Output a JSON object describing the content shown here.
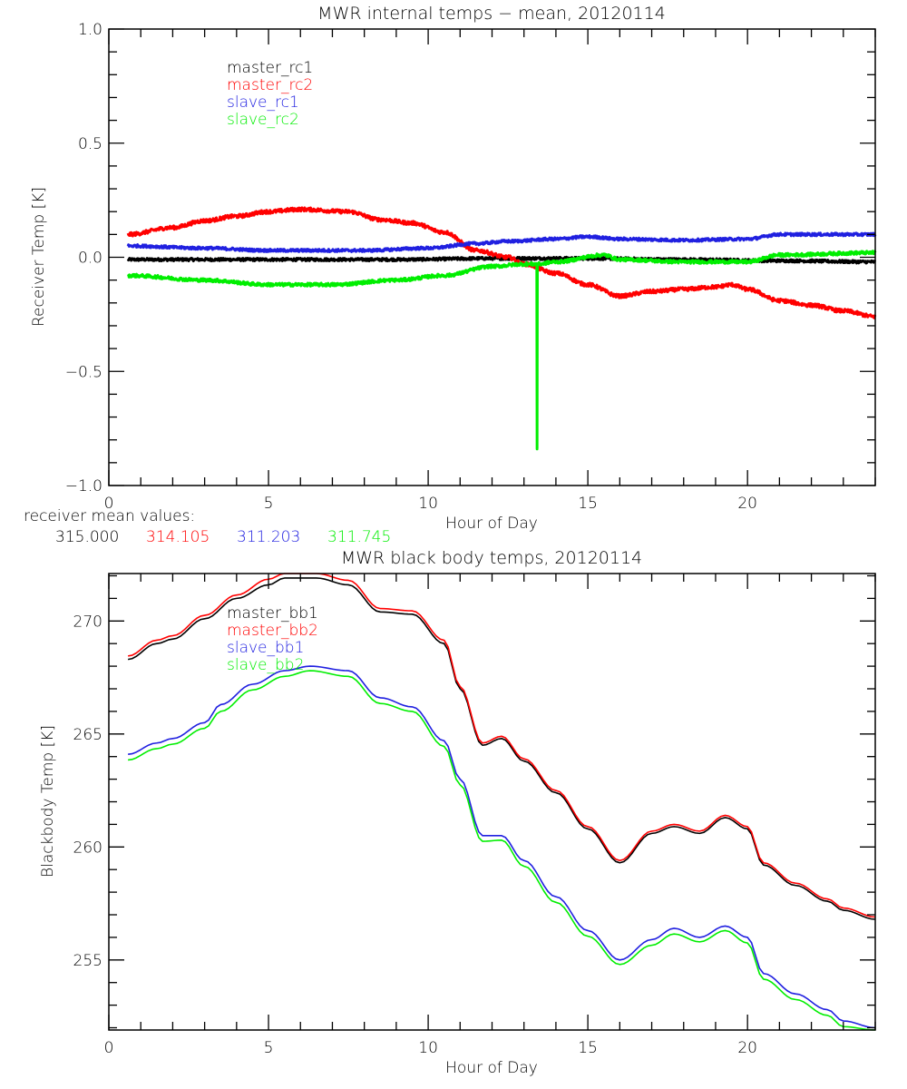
{
  "chart_data": [
    {
      "type": "line",
      "title": "MWR internal temps − mean, 20120114",
      "xlabel": "Hour of Day",
      "ylabel": "Receiver Temp [K]",
      "xlim": [
        0,
        24
      ],
      "ylim": [
        -1.0,
        1.0
      ],
      "xticks": [
        0,
        5,
        10,
        15,
        20
      ],
      "xtick_labels": [
        "0",
        "5",
        "10",
        "15",
        "20"
      ],
      "yticks": [
        -1.0,
        -0.5,
        0.0,
        0.5,
        1.0
      ],
      "ytick_labels": [
        "−1.0",
        "−0.5",
        "0.0",
        "0.5",
        "1.0"
      ],
      "grid": false,
      "legend_position": "top-left",
      "series": [
        {
          "name": "master_rc1",
          "color": "#000000",
          "x": [
            0.6,
            3,
            6,
            9,
            12,
            15,
            18,
            21,
            24
          ],
          "y": [
            -0.01,
            -0.01,
            -0.01,
            -0.01,
            -0.005,
            -0.005,
            -0.01,
            -0.015,
            -0.02
          ]
        },
        {
          "name": "master_rc2",
          "color": "#ff0000",
          "x": [
            0.6,
            2,
            3,
            4,
            5,
            6,
            7.5,
            8.5,
            9.5,
            10.5,
            11.5,
            12.5,
            13,
            14,
            15,
            16,
            17,
            18,
            19,
            19.5,
            20,
            21,
            22,
            23,
            24
          ],
          "y": [
            0.1,
            0.13,
            0.16,
            0.18,
            0.2,
            0.21,
            0.2,
            0.165,
            0.15,
            0.11,
            0.03,
            0.0,
            -0.03,
            -0.07,
            -0.12,
            -0.17,
            -0.15,
            -0.14,
            -0.13,
            -0.12,
            -0.14,
            -0.19,
            -0.21,
            -0.235,
            -0.26
          ]
        },
        {
          "name": "slave_rc1",
          "color": "#2020e0",
          "x": [
            0.6,
            3,
            5,
            8,
            10,
            11.5,
            12.5,
            14,
            15,
            16,
            18,
            20,
            21,
            24
          ],
          "y": [
            0.05,
            0.04,
            0.03,
            0.03,
            0.04,
            0.06,
            0.07,
            0.08,
            0.09,
            0.08,
            0.075,
            0.08,
            0.1,
            0.1
          ]
        },
        {
          "name": "slave_rc2",
          "color": "#00ee00",
          "x": [
            0.6,
            3,
            5,
            7,
            9,
            10.5,
            12,
            13,
            13.4,
            13.41,
            13.42,
            14,
            15.5,
            16,
            18,
            20,
            21,
            24
          ],
          "y": [
            -0.08,
            -0.1,
            -0.12,
            -0.12,
            -0.1,
            -0.08,
            -0.04,
            -0.03,
            -0.03,
            -0.84,
            -0.03,
            -0.02,
            0.01,
            -0.01,
            -0.02,
            -0.02,
            0.01,
            0.02
          ]
        }
      ],
      "annotation": {
        "label": "receiver mean values:",
        "values": [
          {
            "series": "master_rc1",
            "text": "315.000",
            "color": "#000000"
          },
          {
            "series": "master_rc2",
            "text": "314.105",
            "color": "#ff0000"
          },
          {
            "series": "slave_rc1",
            "text": "311.203",
            "color": "#2020e0"
          },
          {
            "series": "slave_rc2",
            "text": "311.745",
            "color": "#00ee00"
          }
        ]
      }
    },
    {
      "type": "line",
      "title": "MWR black body temps, 20120114",
      "xlabel": "Hour of Day",
      "ylabel": "Blackbody Temp [K]",
      "xlim": [
        0,
        24
      ],
      "ylim": [
        251.9,
        272.1
      ],
      "xticks": [
        0,
        5,
        10,
        15,
        20
      ],
      "xtick_labels": [
        "0",
        "5",
        "10",
        "15",
        "20"
      ],
      "yticks": [
        255,
        260,
        265,
        270
      ],
      "ytick_labels": [
        "255",
        "260",
        "265",
        "270"
      ],
      "grid": false,
      "legend_position": "top-left",
      "series": [
        {
          "name": "master_bb1",
          "color": "#000000",
          "x": [
            0.6,
            1.5,
            2,
            3,
            4,
            5,
            5.5,
            6.5,
            7.5,
            8.5,
            9.5,
            10.5,
            11,
            11.7,
            12.3,
            13,
            14,
            15,
            16,
            17,
            17.7,
            18.5,
            19.3,
            20,
            20.5,
            21.5,
            22.5,
            23,
            24
          ],
          "y": [
            268.3,
            269.0,
            269.2,
            270.1,
            271.0,
            271.6,
            271.9,
            271.9,
            271.6,
            270.4,
            270.3,
            269.0,
            267.0,
            264.5,
            264.8,
            263.8,
            262.4,
            260.8,
            259.3,
            260.6,
            260.9,
            260.6,
            261.3,
            260.8,
            259.2,
            258.3,
            257.6,
            257.2,
            256.8
          ]
        },
        {
          "name": "master_bb2",
          "color": "#ff0000",
          "x": [
            0.6,
            1.5,
            2,
            3,
            4,
            5,
            5.5,
            6.5,
            7.5,
            8.5,
            9.5,
            10.5,
            11,
            11.7,
            12.3,
            13,
            14,
            15,
            16,
            17,
            17.7,
            18.5,
            19.3,
            20,
            20.5,
            21.5,
            22.5,
            23,
            24
          ],
          "y": [
            268.45,
            269.15,
            269.35,
            270.25,
            271.15,
            271.85,
            272.1,
            272.1,
            271.8,
            270.55,
            270.45,
            269.15,
            267.1,
            264.6,
            264.9,
            263.9,
            262.5,
            260.9,
            259.4,
            260.7,
            261.0,
            260.7,
            261.4,
            260.9,
            259.3,
            258.4,
            257.7,
            257.3,
            256.9
          ]
        },
        {
          "name": "slave_bb1",
          "color": "#2020e0",
          "x": [
            0.6,
            1.5,
            2,
            3,
            3.5,
            4.5,
            5.5,
            6.3,
            7.5,
            8.5,
            9.5,
            10.5,
            11,
            11.7,
            12.3,
            13,
            14,
            15,
            16,
            17,
            17.7,
            18.5,
            19.3,
            20,
            20.5,
            21.5,
            22.5,
            23,
            24
          ],
          "y": [
            264.1,
            264.6,
            264.8,
            265.5,
            266.3,
            267.2,
            267.8,
            268.0,
            267.8,
            266.6,
            266.2,
            264.7,
            263.0,
            260.5,
            260.5,
            259.4,
            257.8,
            256.3,
            255.0,
            255.9,
            256.4,
            256.0,
            256.5,
            256.0,
            254.4,
            253.5,
            252.8,
            252.3,
            252.0
          ]
        },
        {
          "name": "slave_bb2",
          "color": "#00ee00",
          "x": [
            0.6,
            1.5,
            2,
            3,
            3.5,
            4.5,
            5.5,
            6.3,
            7.5,
            8.5,
            9.5,
            10.5,
            11,
            11.7,
            12.3,
            13,
            14,
            15,
            16,
            17,
            17.7,
            18.5,
            19.3,
            20,
            20.5,
            21.5,
            22.5,
            23,
            24
          ],
          "y": [
            263.85,
            264.35,
            264.55,
            265.25,
            266.0,
            266.95,
            267.55,
            267.8,
            267.55,
            266.35,
            266.0,
            264.45,
            262.75,
            260.25,
            260.3,
            259.15,
            257.55,
            256.05,
            254.8,
            255.65,
            256.15,
            255.8,
            256.3,
            255.75,
            254.15,
            253.25,
            252.55,
            252.05,
            251.9
          ]
        }
      ]
    }
  ]
}
